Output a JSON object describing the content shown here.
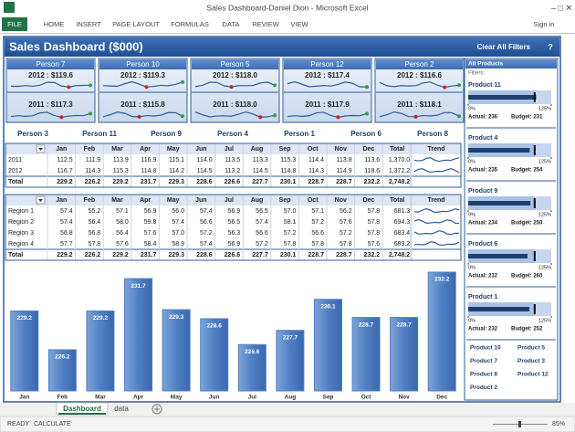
{
  "window": {
    "title": "Sales Dashboard-Daniel Dion - Microsoft Excel",
    "sign_in": "Sign in",
    "tabs": [
      "FILE",
      "HOME",
      "INSERT",
      "PAGE LAYOUT",
      "FORMULAS",
      "DATA",
      "REVIEW",
      "VIEW"
    ]
  },
  "dashboard": {
    "title": "Sales Dashboard ($000)",
    "clear": "Clear All Filters",
    "help": "?",
    "cards": [
      {
        "name": "Person 7",
        "y2012": "2012 : $119.6",
        "y2011": "2011 : $117.3"
      },
      {
        "name": "Person 10",
        "y2012": "2012 : $119.3",
        "y2011": "2011 : $115.8"
      },
      {
        "name": "Person 5",
        "y2012": "2012 : $118.0",
        "y2011": "2011 : $118.0"
      },
      {
        "name": "Person 12",
        "y2012": "2012 : $117.4",
        "y2011": "2011 : $117.9"
      },
      {
        "name": "Person 2",
        "y2012": "2012 : $116.6",
        "y2011": "2011 : $118.1"
      }
    ],
    "people": [
      "Person 3",
      "Person 11",
      "Person 9",
      "Person 4",
      "Person 1",
      "Person 6",
      "Person 8"
    ],
    "year_table": {
      "header": [
        "Jan",
        "Feb",
        "Mar",
        "Apr",
        "May",
        "Jun",
        "Jul",
        "Aug",
        "Sep",
        "Oct",
        "Nov",
        "Dec",
        "Total",
        "Trend"
      ],
      "rows": [
        {
          "label": "2011",
          "cells": [
            "112.5",
            "111.9",
            "113.9",
            "116.9",
            "115.1",
            "114.0",
            "113.5",
            "113.3",
            "115.3",
            "114.4",
            "113.8",
            "113.6",
            "1,370.0"
          ]
        },
        {
          "label": "2012",
          "cells": [
            "116.7",
            "114.3",
            "115.3",
            "114.8",
            "114.2",
            "114.5",
            "113.2",
            "114.5",
            "114.8",
            "114.3",
            "114.9",
            "118.6",
            "1,372.2"
          ]
        }
      ],
      "total": {
        "label": "Total",
        "cells": [
          "229.2",
          "226.2",
          "229.2",
          "231.7",
          "229.3",
          "228.6",
          "226.6",
          "227.7",
          "230.1",
          "228.7",
          "228.7",
          "232.2",
          "2,748.2"
        ]
      }
    },
    "region_table": {
      "header": [
        "Jan",
        "Feb",
        "Mar",
        "Apr",
        "May",
        "Jun",
        "Jul",
        "Aug",
        "Sep",
        "Oct",
        "Nov",
        "Dec",
        "Total",
        "Trend"
      ],
      "rows": [
        {
          "label": "Region 1",
          "cells": [
            "57.4",
            "55.2",
            "57.1",
            "56.9",
            "56.0",
            "57.4",
            "56.9",
            "56.5",
            "57.0",
            "57.1",
            "56.2",
            "57.8",
            "681.3"
          ]
        },
        {
          "label": "Region 2",
          "cells": [
            "57.4",
            "56.4",
            "58.0",
            "59.8",
            "57.4",
            "56.6",
            "56.5",
            "57.4",
            "58.1",
            "57.2",
            "57.6",
            "57.8",
            "694.3"
          ]
        },
        {
          "label": "Region 3",
          "cells": [
            "56.8",
            "56.8",
            "56.4",
            "57.6",
            "57.0",
            "57.2",
            "56.3",
            "56.6",
            "57.2",
            "56.6",
            "57.2",
            "57.8",
            "683.4"
          ]
        },
        {
          "label": "Region 4",
          "cells": [
            "57.7",
            "57.8",
            "57.6",
            "58.4",
            "58.9",
            "57.4",
            "56.9",
            "57.2",
            "57.8",
            "57.8",
            "57.8",
            "57.6",
            "689.2"
          ]
        }
      ],
      "total": {
        "label": "Total",
        "cells": [
          "229.2",
          "226.2",
          "229.2",
          "231.7",
          "229.3",
          "228.6",
          "226.6",
          "227.7",
          "230.1",
          "228.7",
          "228.7",
          "232.2",
          "2,748.2"
        ]
      }
    },
    "panel": {
      "title": "All Products",
      "filters": "Filters:",
      "scale": [
        {
          "value": 0,
          "label": "0%"
        },
        {
          "value": 125,
          "label": "125%"
        }
      ],
      "products": [
        {
          "name": "Product 11",
          "actual": {
            "value": 236,
            "label": "Actual: 236"
          },
          "budget": {
            "value": 231,
            "label": "Budget: 231"
          }
        },
        {
          "name": "Product 4",
          "actual": {
            "value": 235,
            "label": "Actual: 235"
          },
          "budget": {
            "value": 254,
            "label": "Budget: 254"
          }
        },
        {
          "name": "Product 9",
          "actual": {
            "value": 234,
            "label": "Actual: 234"
          },
          "budget": {
            "value": 250,
            "label": "Budget: 250"
          }
        },
        {
          "name": "Product 6",
          "actual": {
            "value": 232,
            "label": "Actual: 232"
          },
          "budget": {
            "value": 260,
            "label": "Budget: 260"
          }
        },
        {
          "name": "Product 1",
          "actual": {
            "value": 232,
            "label": "Actual: 232"
          },
          "budget": {
            "value": 252,
            "label": "Budget: 252"
          }
        }
      ],
      "others": [
        "Product 10",
        "Product 5",
        "Product 7",
        "Product 3",
        "Product 8",
        "Product 12",
        "Product 2"
      ]
    }
  },
  "chart_data": {
    "type": "bar",
    "categories": [
      "Jan",
      "Feb",
      "Mar",
      "Apr",
      "May",
      "Jun",
      "Jul",
      "Aug",
      "Sep",
      "Oct",
      "Nov",
      "Dec"
    ],
    "values": [
      229.2,
      226.2,
      229.2,
      231.7,
      229.3,
      228.6,
      226.6,
      227.7,
      230.1,
      228.7,
      228.7,
      232.2
    ],
    "color": "#4f7fc4"
  },
  "status": {
    "sheets": [
      "Dashboard",
      "data"
    ],
    "ready": "READY",
    "calculate": "CALCULATE",
    "zoom": "85%"
  }
}
